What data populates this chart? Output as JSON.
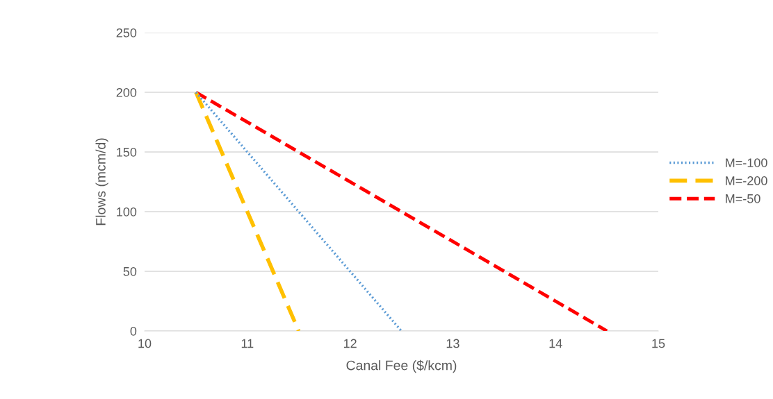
{
  "chart_data": {
    "type": "line",
    "xlabel": "Canal Fee ($/kcm)",
    "ylabel": "Flows (mcm/d)",
    "xlim": [
      10,
      15
    ],
    "xticks": [
      10,
      11,
      12,
      13,
      14,
      15
    ],
    "ylim": [
      0,
      250
    ],
    "yticks": [
      0,
      50,
      100,
      150,
      200,
      250
    ],
    "grid": "y",
    "legend": "right",
    "marker": "none",
    "series": [
      {
        "name": "M=-100",
        "color": "#5b9bd5",
        "line_style": "dotted",
        "x": [
          10.5,
          12.5
        ],
        "values": [
          200,
          0
        ]
      },
      {
        "name": "M=-200",
        "color": "#ffc000",
        "line_style": "dashed",
        "x": [
          10.5,
          11.5
        ],
        "values": [
          200,
          0
        ]
      },
      {
        "name": "M=-50",
        "color": "#ff0000",
        "line_style": "dashed",
        "x": [
          10.5,
          14.5
        ],
        "values": [
          200,
          0
        ]
      }
    ]
  }
}
